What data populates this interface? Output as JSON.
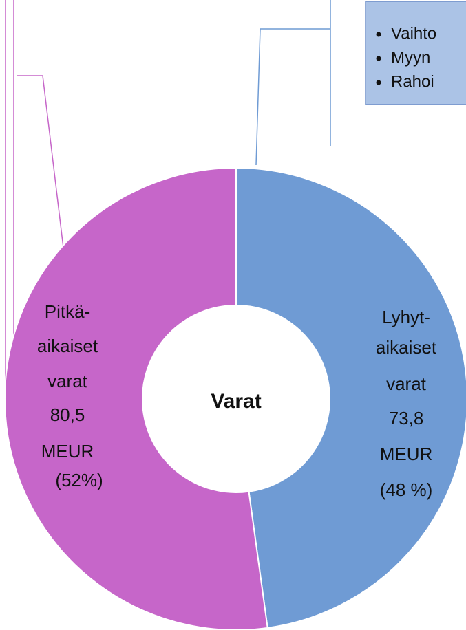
{
  "chart_data": {
    "type": "pie",
    "donut": true,
    "center_label": "Varat",
    "values": [
      73.8,
      80.5
    ],
    "colors": [
      "#6f9bd4",
      "#c666c9"
    ],
    "label_lines": [
      [
        "Lyhyt-",
        "aikaiset",
        "varat"
      ],
      [
        "Pitkä-",
        "aikaiset",
        "varat"
      ]
    ],
    "value_labels": [
      "73,8",
      "80,5"
    ],
    "unit_labels": [
      "MEUR",
      "MEUR"
    ],
    "percent_labels": [
      "(48 %)",
      "(52%)"
    ]
  },
  "callout": {
    "items": [
      "Vaihto",
      "Myyn",
      "Rahoi"
    ]
  }
}
